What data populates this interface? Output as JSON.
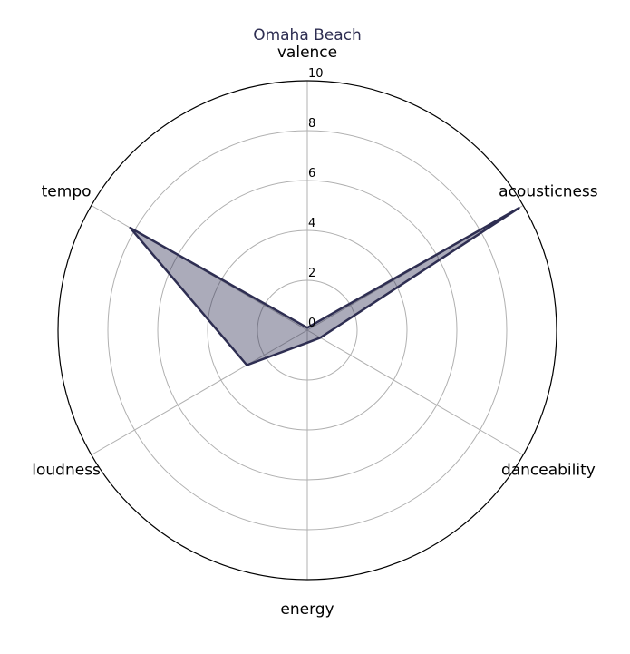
{
  "chart_data": {
    "type": "radar",
    "title": "Omaha Beach",
    "axes": [
      "valence",
      "acousticness",
      "danceability",
      "energy",
      "loudness",
      "tempo"
    ],
    "series": [
      {
        "values": [
          0.1,
          9.8,
          0.6,
          0.5,
          2.8,
          8.2
        ]
      }
    ],
    "rlim": [
      0,
      10
    ],
    "rticks": [
      "0",
      "2",
      "4",
      "6",
      "8",
      "10"
    ],
    "grid": true,
    "color": "#2e2e52"
  }
}
